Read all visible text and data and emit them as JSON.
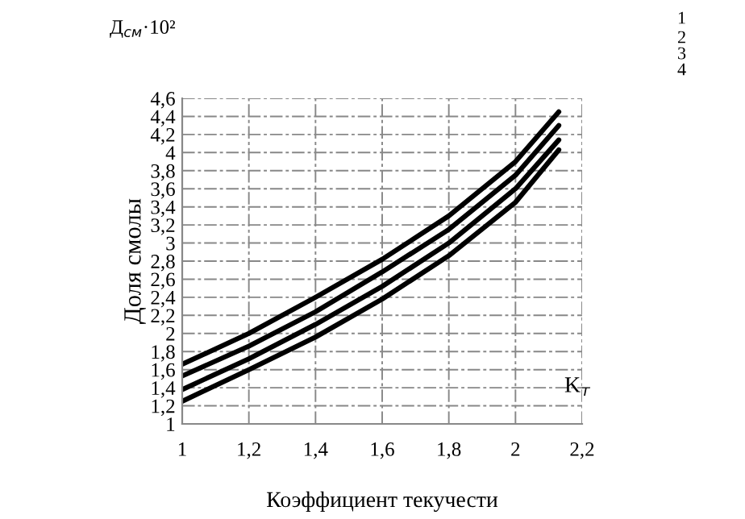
{
  "chart_data": {
    "type": "line",
    "xlabel": "Коэффициент текучести",
    "ylabel": "Доля смолы",
    "annotations": [
      "Д$_{см}$·10²",
      "K$_{т}$",
      "1",
      "2",
      "3",
      "4"
    ],
    "x": [
      1,
      1.2,
      1.4,
      1.6,
      1.8,
      2.0,
      2.13
    ],
    "series": [
      {
        "color": "#000000",
        "values": [
          1.66,
          2.0,
          2.4,
          2.82,
          3.3,
          3.9,
          4.45
        ]
      },
      {
        "color": "#000000",
        "values": [
          1.53,
          1.86,
          2.24,
          2.68,
          3.15,
          3.75,
          4.3
        ]
      },
      {
        "color": "#000000",
        "values": [
          1.38,
          1.72,
          2.1,
          2.52,
          3.0,
          3.6,
          4.14
        ]
      },
      {
        "color": "#000000",
        "values": [
          1.25,
          1.6,
          1.96,
          2.38,
          2.86,
          3.45,
          4.03
        ]
      }
    ],
    "xlim": [
      1,
      2.2
    ],
    "xticks": [
      {
        "value": 1,
        "label": "1"
      },
      {
        "value": 1.2,
        "label": "1,2"
      },
      {
        "value": 1.4,
        "label": "1,4"
      },
      {
        "value": 1.6,
        "label": "1,6"
      },
      {
        "value": 1.8,
        "label": "1,8"
      },
      {
        "value": 2,
        "label": "2"
      },
      {
        "value": 2.2,
        "label": "2,2"
      }
    ],
    "ylim": [
      1,
      4.6
    ],
    "yticks": [
      {
        "value": 1,
        "label": "1"
      },
      {
        "value": 1.2,
        "label": "1,2"
      },
      {
        "value": 1.4,
        "label": "1,4"
      },
      {
        "value": 1.6,
        "label": "1,6"
      },
      {
        "value": 1.8,
        "label": "1,8"
      },
      {
        "value": 2,
        "label": "2"
      },
      {
        "value": 2.2,
        "label": "2,2"
      },
      {
        "value": 2.4,
        "label": "2,4"
      },
      {
        "value": 2.6,
        "label": "2,6"
      },
      {
        "value": 2.8,
        "label": "2,8"
      },
      {
        "value": 3,
        "label": "3"
      },
      {
        "value": 3.2,
        "label": "3,2"
      },
      {
        "value": 3.4,
        "label": "3,4"
      },
      {
        "value": 3.6,
        "label": "3,6"
      },
      {
        "value": 3.8,
        "label": "3,8"
      },
      {
        "value": 4,
        "label": "4"
      },
      {
        "value": 4.2,
        "label": "4,2"
      },
      {
        "value": 4.4,
        "label": "4,4"
      },
      {
        "value": 4.6,
        "label": "4,6"
      }
    ],
    "grid": true,
    "marker": "none",
    "line_style": "solid"
  }
}
